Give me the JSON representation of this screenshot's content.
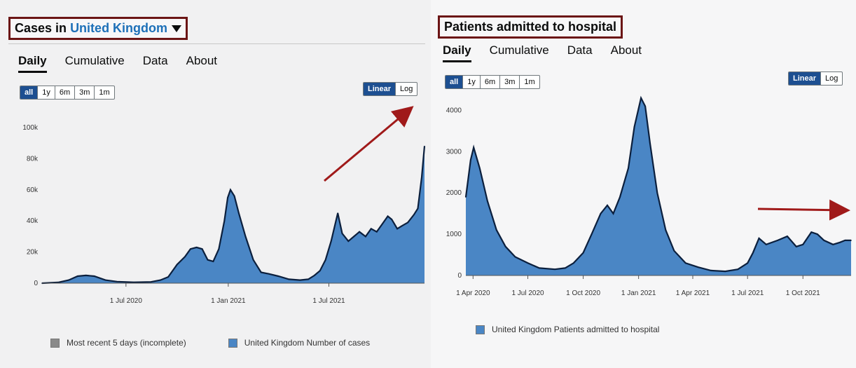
{
  "left": {
    "title_prefix": "Cases in",
    "title_location": "United Kingdom",
    "tabs": [
      "Daily",
      "Cumulative",
      "Data",
      "About"
    ],
    "ranges": [
      "all",
      "1y",
      "6m",
      "3m",
      "1m"
    ],
    "scales": [
      "Linear",
      "Log"
    ],
    "legend": [
      "Most recent 5 days (incomplete)",
      "United Kingdom Number of cases"
    ]
  },
  "right": {
    "title": "Patients admitted to hospital",
    "tabs": [
      "Daily",
      "Cumulative",
      "Data",
      "About"
    ],
    "ranges": [
      "all",
      "1y",
      "6m",
      "3m",
      "1m"
    ],
    "scales": [
      "Linear",
      "Log"
    ],
    "legend": [
      "United Kingdom Patients admitted to hospital"
    ]
  },
  "colors": {
    "fill": "#4a86c5",
    "line": "#0b1f3d",
    "arrow": "#a01a1a",
    "incomplete": "#8a8a8a"
  },
  "chart_data": [
    {
      "type": "area",
      "title": "Cases in United Kingdom",
      "ylim": [
        0,
        100000
      ],
      "yticks": [
        0,
        20000,
        40000,
        60000,
        80000,
        100000
      ],
      "ytick_labels": [
        "0",
        "20k",
        "40k",
        "60k",
        "80k",
        "100k"
      ],
      "xlim": [
        "2020-02-01",
        "2021-12-20"
      ],
      "xticks": [
        "2020-07-01",
        "2021-01-01",
        "2021-07-01"
      ],
      "xtick_labels": [
        "1 Jul 2020",
        "1 Jan 2021",
        "1 Jul 2021"
      ],
      "grid": false,
      "legend_position": "bottom",
      "series": [
        {
          "name": "United Kingdom Number of cases",
          "x": [
            "2020-02-01",
            "2020-03-01",
            "2020-03-20",
            "2020-04-05",
            "2020-04-20",
            "2020-05-05",
            "2020-05-25",
            "2020-06-15",
            "2020-07-15",
            "2020-08-15",
            "2020-09-01",
            "2020-09-15",
            "2020-10-01",
            "2020-10-15",
            "2020-10-25",
            "2020-11-05",
            "2020-11-15",
            "2020-11-25",
            "2020-12-05",
            "2020-12-15",
            "2020-12-25",
            "2020-12-31",
            "2021-01-05",
            "2021-01-12",
            "2021-01-20",
            "2021-02-01",
            "2021-02-15",
            "2021-03-01",
            "2021-03-15",
            "2021-04-01",
            "2021-04-20",
            "2021-05-10",
            "2021-05-25",
            "2021-06-05",
            "2021-06-15",
            "2021-06-25",
            "2021-07-05",
            "2021-07-17",
            "2021-07-25",
            "2021-08-05",
            "2021-08-15",
            "2021-08-25",
            "2021-09-05",
            "2021-09-15",
            "2021-09-25",
            "2021-10-05",
            "2021-10-15",
            "2021-10-22",
            "2021-11-01",
            "2021-11-10",
            "2021-11-20",
            "2021-12-01",
            "2021-12-08",
            "2021-12-15",
            "2021-12-20"
          ],
          "values": [
            0,
            500,
            2000,
            4500,
            5000,
            4500,
            2000,
            1000,
            600,
            800,
            2000,
            4000,
            12000,
            17000,
            22000,
            23000,
            22000,
            15000,
            14000,
            22000,
            40000,
            55000,
            60000,
            56000,
            45000,
            30000,
            15000,
            7000,
            6000,
            4500,
            2500,
            2000,
            2500,
            5000,
            8000,
            15000,
            27000,
            45000,
            32000,
            27000,
            30000,
            33000,
            30000,
            35000,
            33000,
            38000,
            43000,
            41000,
            35000,
            37000,
            39000,
            44000,
            48000,
            68000,
            88000
          ]
        }
      ]
    },
    {
      "type": "area",
      "title": "Patients admitted to hospital",
      "ylim": [
        0,
        4500
      ],
      "yticks": [
        0,
        1000,
        2000,
        3000,
        4000
      ],
      "ytick_labels": [
        "0",
        "1000",
        "2000",
        "3000",
        "4000"
      ],
      "xlim": [
        "2020-03-20",
        "2021-12-20"
      ],
      "xticks": [
        "2020-04-01",
        "2020-07-01",
        "2020-10-01",
        "2021-01-01",
        "2021-04-01",
        "2021-07-01",
        "2021-10-01"
      ],
      "xtick_labels": [
        "1 Apr 2020",
        "1 Jul 2020",
        "1 Oct 2020",
        "1 Jan 2021",
        "1 Apr 2021",
        "1 Jul 2021",
        "1 Oct 2021"
      ],
      "grid": false,
      "legend_position": "bottom",
      "series": [
        {
          "name": "United Kingdom Patients admitted to hospital",
          "x": [
            "2020-03-20",
            "2020-03-28",
            "2020-04-02",
            "2020-04-12",
            "2020-04-25",
            "2020-05-10",
            "2020-05-25",
            "2020-06-10",
            "2020-07-01",
            "2020-07-20",
            "2020-08-15",
            "2020-09-01",
            "2020-09-15",
            "2020-10-01",
            "2020-10-15",
            "2020-10-30",
            "2020-11-10",
            "2020-11-20",
            "2020-12-01",
            "2020-12-15",
            "2020-12-25",
            "2021-01-05",
            "2021-01-12",
            "2021-01-20",
            "2021-02-01",
            "2021-02-15",
            "2021-03-01",
            "2021-03-20",
            "2021-04-10",
            "2021-05-01",
            "2021-05-25",
            "2021-06-15",
            "2021-07-01",
            "2021-07-10",
            "2021-07-20",
            "2021-08-01",
            "2021-08-20",
            "2021-09-05",
            "2021-09-20",
            "2021-10-01",
            "2021-10-15",
            "2021-10-25",
            "2021-11-05",
            "2021-11-20",
            "2021-12-01",
            "2021-12-10",
            "2021-12-20"
          ],
          "values": [
            1900,
            2800,
            3100,
            2600,
            1800,
            1100,
            700,
            450,
            300,
            180,
            150,
            180,
            300,
            550,
            1000,
            1500,
            1700,
            1500,
            1900,
            2600,
            3600,
            4300,
            4100,
            3200,
            2000,
            1100,
            600,
            300,
            200,
            120,
            100,
            150,
            300,
            550,
            900,
            750,
            850,
            950,
            700,
            750,
            1050,
            1000,
            850,
            750,
            800,
            850,
            850
          ]
        }
      ]
    }
  ]
}
